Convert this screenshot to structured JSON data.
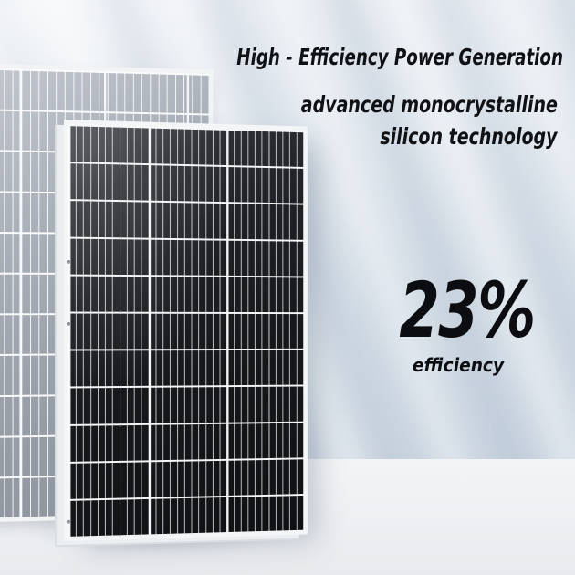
{
  "hero": {
    "headline": "High - Efficiency Power Generation",
    "subheadline_line1": "advanced monocrystalline",
    "subheadline_line2": "silicon technology",
    "stat": {
      "value": "23%",
      "label": "efficiency"
    }
  },
  "panels": {
    "front": {
      "description": "monocrystalline solar panel, dark cells, white frame",
      "cell_color": "#15171b",
      "frame_color": "#f3f5f7",
      "grid_line_color": "#ffffff",
      "rows": 11,
      "column_groups": 3
    },
    "back": {
      "description": "solar panel, light gray cells, white frame",
      "cell_color": "#9aa1ab",
      "frame_color": "#f1f3f5",
      "grid_line_color": "#ffffff"
    }
  },
  "background": {
    "wall_top_color": "#eaeef3",
    "wall_bottom_color": "#c9d4e0",
    "floor_color": "#f0f1f3",
    "text_color": "#101114"
  }
}
